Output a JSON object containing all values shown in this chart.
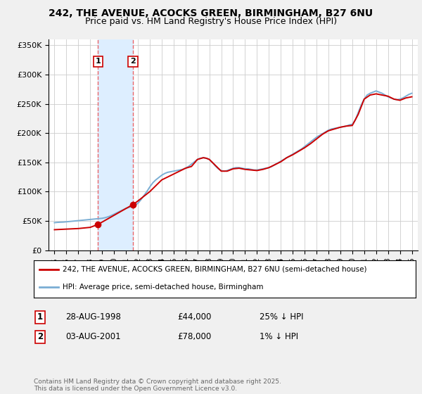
{
  "title1": "242, THE AVENUE, ACOCKS GREEN, BIRMINGHAM, B27 6NU",
  "title2": "Price paid vs. HM Land Registry's House Price Index (HPI)",
  "legend_label_red": "242, THE AVENUE, ACOCKS GREEN, BIRMINGHAM, B27 6NU (semi-detached house)",
  "legend_label_blue": "HPI: Average price, semi-detached house, Birmingham",
  "footnote": "Contains HM Land Registry data © Crown copyright and database right 2025.\nThis data is licensed under the Open Government Licence v3.0.",
  "transactions": [
    {
      "num": 1,
      "date": "28-AUG-1998",
      "price": 44000,
      "year": 1998.65,
      "hpi_pct": "25% ↓ HPI"
    },
    {
      "num": 2,
      "date": "03-AUG-2001",
      "price": 78000,
      "year": 2001.59,
      "hpi_pct": "1% ↓ HPI"
    }
  ],
  "red_color": "#cc0000",
  "blue_color": "#7aaed4",
  "shade_color": "#ddeeff",
  "vline_color": "#ee4444",
  "background_color": "#f0f0f0",
  "plot_bg_color": "#ffffff",
  "ylim": [
    0,
    360000
  ],
  "xlim": [
    1994.5,
    2025.5
  ],
  "yticks": [
    0,
    50000,
    100000,
    150000,
    200000,
    250000,
    300000,
    350000
  ],
  "xticks": [
    1995,
    1996,
    1997,
    1998,
    1999,
    2000,
    2001,
    2002,
    2003,
    2004,
    2005,
    2006,
    2007,
    2008,
    2009,
    2010,
    2011,
    2012,
    2013,
    2014,
    2015,
    2016,
    2017,
    2018,
    2019,
    2020,
    2021,
    2022,
    2023,
    2024,
    2025
  ],
  "hpi_years": [
    1995.0,
    1995.25,
    1995.5,
    1995.75,
    1996.0,
    1996.25,
    1996.5,
    1996.75,
    1997.0,
    1997.25,
    1997.5,
    1997.75,
    1998.0,
    1998.25,
    1998.5,
    1998.75,
    1999.0,
    1999.25,
    1999.5,
    1999.75,
    2000.0,
    2000.25,
    2000.5,
    2000.75,
    2001.0,
    2001.25,
    2001.5,
    2001.75,
    2002.0,
    2002.25,
    2002.5,
    2002.75,
    2003.0,
    2003.25,
    2003.5,
    2003.75,
    2004.0,
    2004.25,
    2004.5,
    2004.75,
    2005.0,
    2005.25,
    2005.5,
    2005.75,
    2006.0,
    2006.25,
    2006.5,
    2006.75,
    2007.0,
    2007.25,
    2007.5,
    2007.75,
    2008.0,
    2008.25,
    2008.5,
    2008.75,
    2009.0,
    2009.25,
    2009.5,
    2009.75,
    2010.0,
    2010.25,
    2010.5,
    2010.75,
    2011.0,
    2011.25,
    2011.5,
    2011.75,
    2012.0,
    2012.25,
    2012.5,
    2012.75,
    2013.0,
    2013.25,
    2013.5,
    2013.75,
    2014.0,
    2014.25,
    2014.5,
    2014.75,
    2015.0,
    2015.25,
    2015.5,
    2015.75,
    2016.0,
    2016.25,
    2016.5,
    2016.75,
    2017.0,
    2017.25,
    2017.5,
    2017.75,
    2018.0,
    2018.25,
    2018.5,
    2018.75,
    2019.0,
    2019.25,
    2019.5,
    2019.75,
    2020.0,
    2020.25,
    2020.5,
    2020.75,
    2021.0,
    2021.25,
    2021.5,
    2021.75,
    2022.0,
    2022.25,
    2022.5,
    2022.75,
    2023.0,
    2023.25,
    2023.5,
    2023.75,
    2024.0,
    2024.25,
    2024.5,
    2024.75,
    2025.0
  ],
  "hpi_values": [
    47000,
    47500,
    47800,
    48000,
    48500,
    49000,
    49500,
    50000,
    50500,
    51000,
    51500,
    52000,
    52500,
    53000,
    53500,
    54000,
    54500,
    55500,
    57000,
    59000,
    61500,
    64000,
    66500,
    69000,
    71500,
    73000,
    75000,
    77000,
    80000,
    86000,
    93000,
    100000,
    108000,
    115000,
    120000,
    124000,
    128000,
    131000,
    133000,
    134000,
    135000,
    136000,
    137000,
    138000,
    140000,
    143000,
    147000,
    151000,
    155000,
    157000,
    158000,
    157000,
    155000,
    150000,
    144000,
    139000,
    136000,
    135000,
    136000,
    138000,
    140000,
    141000,
    141000,
    140000,
    139000,
    139000,
    138000,
    137000,
    137000,
    138000,
    139000,
    140000,
    141000,
    143000,
    146000,
    149000,
    152000,
    155000,
    158000,
    161000,
    164000,
    167000,
    170000,
    173000,
    177000,
    181000,
    185000,
    189000,
    193000,
    196000,
    199000,
    202000,
    205000,
    207000,
    208000,
    209000,
    210000,
    211000,
    212000,
    214000,
    215000,
    222000,
    235000,
    248000,
    258000,
    265000,
    268000,
    270000,
    272000,
    270000,
    268000,
    265000,
    262000,
    260000,
    258000,
    257000,
    258000,
    260000,
    263000,
    266000,
    268000
  ],
  "red_years": [
    1995.0,
    1995.5,
    1996.0,
    1996.5,
    1997.0,
    1997.5,
    1998.0,
    1998.65,
    2001.59,
    2002.0,
    2003.0,
    2004.0,
    2005.0,
    2005.5,
    2006.0,
    2006.5,
    2007.0,
    2007.5,
    2007.75,
    2008.0,
    2008.5,
    2009.0,
    2009.5,
    2010.0,
    2010.5,
    2011.0,
    2011.5,
    2012.0,
    2012.5,
    2013.0,
    2013.5,
    2014.0,
    2014.5,
    2015.0,
    2015.5,
    2016.0,
    2016.5,
    2017.0,
    2017.5,
    2018.0,
    2018.5,
    2019.0,
    2019.5,
    2020.0,
    2020.5,
    2021.0,
    2021.5,
    2022.0,
    2022.5,
    2023.0,
    2023.5,
    2024.0,
    2024.5,
    2025.0
  ],
  "red_values": [
    35000,
    35500,
    36000,
    36500,
    37000,
    38000,
    39000,
    44000,
    78000,
    84000,
    100000,
    120000,
    130000,
    135000,
    140000,
    143000,
    155000,
    158000,
    157000,
    155000,
    145000,
    135000,
    135000,
    139000,
    140000,
    138000,
    137000,
    136000,
    138000,
    141000,
    146000,
    151000,
    158000,
    163000,
    169000,
    175000,
    182000,
    190000,
    198000,
    204000,
    207000,
    210000,
    212000,
    213000,
    232000,
    258000,
    265000,
    267000,
    265000,
    263000,
    258000,
    256000,
    260000,
    262000
  ]
}
